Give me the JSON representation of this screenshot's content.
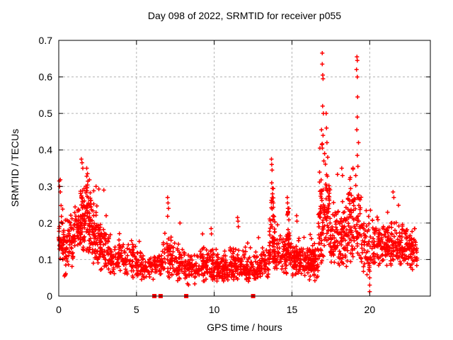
{
  "chart_data": {
    "type": "scatter",
    "title": "Day 098 of 2022, SRMTID for receiver p055",
    "xlabel": "GPS time / hours",
    "ylabel": "SRMTID / TECUs",
    "xlim": [
      0,
      23.9
    ],
    "ylim": [
      0,
      0.7
    ],
    "xticks": [
      0,
      5,
      10,
      15,
      20
    ],
    "yticks": [
      0,
      0.1,
      0.2,
      0.3,
      0.4,
      0.5,
      0.6,
      0.7
    ],
    "ytick_labels": [
      "0",
      "0.1",
      "0.2",
      "0.3",
      "0.4",
      "0.5",
      "0.6",
      "0.7"
    ],
    "xtick_labels": [
      "0",
      "5",
      "10",
      "15",
      "20"
    ],
    "grid": true,
    "legend": false,
    "grid_color": "#b3b3b3",
    "axis_color": "#000000",
    "background_color": "#ffffff",
    "marker": {
      "shape": "plus",
      "color": "#ff0000",
      "size": 7
    },
    "series": [
      {
        "name": "SRMTID receiver p055",
        "zeros_hours": [
          6.15,
          6.55,
          8.2,
          12.5
        ],
        "peaks": [
          [
            0.03,
            0.315
          ],
          [
            0.06,
            0.3
          ],
          [
            0.1,
            0.285
          ],
          [
            1.45,
            0.375
          ],
          [
            1.5,
            0.365
          ],
          [
            1.55,
            0.35
          ],
          [
            1.8,
            0.35
          ],
          [
            1.85,
            0.335
          ],
          [
            2.4,
            0.3
          ],
          [
            2.9,
            0.29
          ],
          [
            7.0,
            0.27
          ],
          [
            7.03,
            0.255
          ],
          [
            7.06,
            0.24
          ],
          [
            7.8,
            0.2
          ],
          [
            9.25,
            0.17
          ],
          [
            9.8,
            0.185
          ],
          [
            9.82,
            0.17
          ],
          [
            11.5,
            0.215
          ],
          [
            11.53,
            0.205
          ],
          [
            11.55,
            0.19
          ],
          [
            12.85,
            0.16
          ],
          [
            13.68,
            0.375
          ],
          [
            13.7,
            0.36
          ],
          [
            13.72,
            0.345
          ],
          [
            13.7,
            0.31
          ],
          [
            13.74,
            0.295
          ],
          [
            14.7,
            0.27
          ],
          [
            14.72,
            0.255
          ],
          [
            14.74,
            0.24
          ],
          [
            15.3,
            0.22
          ],
          [
            15.32,
            0.205
          ],
          [
            16.95,
            0.665
          ],
          [
            16.95,
            0.635
          ],
          [
            16.98,
            0.605
          ],
          [
            17.0,
            0.595
          ],
          [
            16.97,
            0.52
          ],
          [
            17.02,
            0.5
          ],
          [
            16.9,
            0.455
          ],
          [
            17.0,
            0.44
          ],
          [
            16.95,
            0.405
          ],
          [
            17.1,
            0.39
          ],
          [
            17.05,
            0.37
          ],
          [
            17.2,
            0.5
          ],
          [
            17.22,
            0.46
          ],
          [
            17.25,
            0.42
          ],
          [
            17.3,
            0.38
          ],
          [
            18.2,
            0.35
          ],
          [
            18.25,
            0.33
          ],
          [
            19.18,
            0.655
          ],
          [
            19.2,
            0.645
          ],
          [
            19.15,
            0.62
          ],
          [
            19.2,
            0.6
          ],
          [
            19.22,
            0.545
          ],
          [
            19.2,
            0.49
          ],
          [
            19.17,
            0.455
          ],
          [
            19.28,
            0.42
          ],
          [
            19.2,
            0.385
          ],
          [
            19.24,
            0.355
          ],
          [
            19.1,
            0.33
          ],
          [
            20.0,
            0.012
          ],
          [
            20.0,
            0.03
          ],
          [
            20.0,
            0.05
          ],
          [
            20.0,
            0.068
          ],
          [
            21.5,
            0.285
          ],
          [
            21.55,
            0.27
          ]
        ],
        "clusters": [
          {
            "t0": 0.0,
            "t1": 0.35,
            "n": 45,
            "vmin": 0.09,
            "vmax": 0.32,
            "vc": 0.16,
            "vs": 0.05
          },
          {
            "t0": 0.35,
            "t1": 1.0,
            "n": 70,
            "vmin": 0.05,
            "vmax": 0.3,
            "vc": 0.14,
            "vs": 0.045
          },
          {
            "t0": 1.0,
            "t1": 1.4,
            "n": 45,
            "vmin": 0.1,
            "vmax": 0.3,
            "vc": 0.18,
            "vs": 0.05
          },
          {
            "t0": 1.4,
            "t1": 2.1,
            "n": 110,
            "vmin": 0.1,
            "vmax": 0.37,
            "vc": 0.21,
            "vs": 0.055
          },
          {
            "t0": 2.1,
            "t1": 2.6,
            "n": 60,
            "vmin": 0.09,
            "vmax": 0.3,
            "vc": 0.16,
            "vs": 0.045
          },
          {
            "t0": 2.6,
            "t1": 3.2,
            "n": 60,
            "vmin": 0.07,
            "vmax": 0.25,
            "vc": 0.13,
            "vs": 0.04
          },
          {
            "t0": 3.2,
            "t1": 4.2,
            "n": 75,
            "vmin": 0.06,
            "vmax": 0.19,
            "vc": 0.105,
            "vs": 0.03
          },
          {
            "t0": 4.2,
            "t1": 5.2,
            "n": 65,
            "vmin": 0.05,
            "vmax": 0.17,
            "vc": 0.095,
            "vs": 0.028
          },
          {
            "t0": 5.2,
            "t1": 6.1,
            "n": 60,
            "vmin": 0.04,
            "vmax": 0.13,
            "vc": 0.08,
            "vs": 0.024
          },
          {
            "t0": 6.1,
            "t1": 6.65,
            "n": 40,
            "vmin": 0.05,
            "vmax": 0.16,
            "vc": 0.09,
            "vs": 0.028
          },
          {
            "t0": 6.65,
            "t1": 7.25,
            "n": 45,
            "vmin": 0.05,
            "vmax": 0.26,
            "vc": 0.11,
            "vs": 0.045
          },
          {
            "t0": 7.25,
            "t1": 8.1,
            "n": 60,
            "vmin": 0.04,
            "vmax": 0.19,
            "vc": 0.085,
            "vs": 0.03
          },
          {
            "t0": 8.1,
            "t1": 9.0,
            "n": 70,
            "vmin": 0.03,
            "vmax": 0.14,
            "vc": 0.075,
            "vs": 0.024
          },
          {
            "t0": 9.0,
            "t1": 10.0,
            "n": 85,
            "vmin": 0.04,
            "vmax": 0.17,
            "vc": 0.08,
            "vs": 0.028
          },
          {
            "t0": 10.0,
            "t1": 11.0,
            "n": 90,
            "vmin": 0.04,
            "vmax": 0.13,
            "vc": 0.075,
            "vs": 0.022
          },
          {
            "t0": 11.0,
            "t1": 12.0,
            "n": 90,
            "vmin": 0.04,
            "vmax": 0.19,
            "vc": 0.08,
            "vs": 0.028
          },
          {
            "t0": 12.0,
            "t1": 13.1,
            "n": 85,
            "vmin": 0.04,
            "vmax": 0.15,
            "vc": 0.075,
            "vs": 0.024
          },
          {
            "t0": 13.1,
            "t1": 13.55,
            "n": 35,
            "vmin": 0.05,
            "vmax": 0.15,
            "vc": 0.09,
            "vs": 0.028
          },
          {
            "t0": 13.55,
            "t1": 13.9,
            "n": 55,
            "vmin": 0.09,
            "vmax": 0.37,
            "vc": 0.17,
            "vs": 0.065
          },
          {
            "t0": 13.9,
            "t1": 15.0,
            "n": 95,
            "vmin": 0.06,
            "vmax": 0.21,
            "vc": 0.11,
            "vs": 0.032
          },
          {
            "t0": 14.6,
            "t1": 14.85,
            "n": 22,
            "vmin": 0.1,
            "vmax": 0.26,
            "vc": 0.16,
            "vs": 0.045
          },
          {
            "t0": 15.0,
            "t1": 16.0,
            "n": 100,
            "vmin": 0.05,
            "vmax": 0.2,
            "vc": 0.1,
            "vs": 0.03
          },
          {
            "t0": 16.0,
            "t1": 16.7,
            "n": 90,
            "vmin": 0.04,
            "vmax": 0.17,
            "vc": 0.095,
            "vs": 0.03
          },
          {
            "t0": 16.7,
            "t1": 17.45,
            "n": 110,
            "vmin": 0.08,
            "vmax": 0.5,
            "vc": 0.21,
            "vs": 0.085
          },
          {
            "t0": 17.45,
            "t1": 18.6,
            "n": 125,
            "vmin": 0.08,
            "vmax": 0.35,
            "vc": 0.16,
            "vs": 0.05
          },
          {
            "t0": 18.6,
            "t1": 19.45,
            "n": 95,
            "vmin": 0.09,
            "vmax": 0.44,
            "vc": 0.2,
            "vs": 0.075
          },
          {
            "t0": 19.45,
            "t1": 20.15,
            "n": 55,
            "vmin": 0.05,
            "vmax": 0.3,
            "vc": 0.14,
            "vs": 0.05
          },
          {
            "t0": 20.15,
            "t1": 21.1,
            "n": 95,
            "vmin": 0.08,
            "vmax": 0.25,
            "vc": 0.14,
            "vs": 0.035
          },
          {
            "t0": 21.1,
            "t1": 22.1,
            "n": 100,
            "vmin": 0.08,
            "vmax": 0.28,
            "vc": 0.14,
            "vs": 0.038
          },
          {
            "t0": 22.1,
            "t1": 23.05,
            "n": 90,
            "vmin": 0.07,
            "vmax": 0.23,
            "vc": 0.13,
            "vs": 0.034
          }
        ]
      }
    ]
  }
}
